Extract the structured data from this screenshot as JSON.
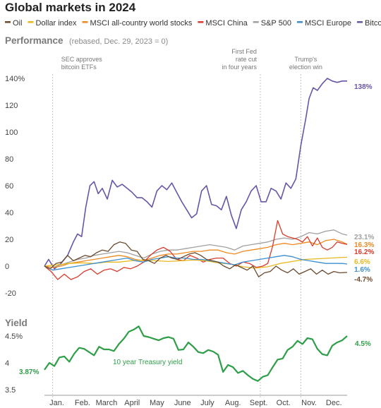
{
  "title": "Global markets in 2024",
  "legend": [
    {
      "name": "Oil",
      "color": "#6b4a2e"
    },
    {
      "name": "Dollar index",
      "color": "#e6b81e"
    },
    {
      "name": "MSCI all-country world stocks",
      "color": "#ee8a22"
    },
    {
      "name": "MSCI China",
      "color": "#d93a2b"
    },
    {
      "name": "S&P 500",
      "color": "#a0a0a0"
    },
    {
      "name": "MSCI Europe",
      "color": "#3d8fcf"
    },
    {
      "name": "Bitcoin",
      "color": "#6955a6"
    }
  ],
  "performance": {
    "heading": "Performance",
    "subheading": "(rebased, Dec. 29, 2023 = 0)"
  },
  "yield_section": {
    "heading": "Yield",
    "series_label": "10 year Treasury yield"
  },
  "annotations": [
    {
      "lines": [
        "SEC approves",
        "bitcoin ETFs"
      ],
      "date": 10
    },
    {
      "lines": [
        "First Fed",
        "rate cut",
        "in four years"
      ],
      "date": 261
    },
    {
      "lines": [
        "Trump's",
        "election win"
      ],
      "date": 310
    }
  ],
  "chart_data": [
    {
      "type": "line",
      "title": "Performance",
      "subtitle": "(rebased, Dec. 29, 2023 = 0)",
      "x_unit": "day of year 2024 (0 = Dec. 29, 2023)",
      "xlim": [
        0,
        366
      ],
      "ylim": [
        -20,
        145
      ],
      "yticks": [
        -20,
        0,
        20,
        40,
        60,
        80,
        100,
        120,
        140
      ],
      "ytick_labels": [
        "-20",
        "0",
        "20",
        "40",
        "60",
        "80",
        "100",
        "120",
        "140%"
      ],
      "xtick_labels": [
        "Jan.",
        "Feb.",
        "March",
        "April",
        "May",
        "June",
        "July",
        "Aug.",
        "Sept.",
        "Oct.",
        "Nov.",
        "Dec."
      ],
      "xtick_positions": [
        15,
        46,
        75,
        106,
        136,
        167,
        197,
        228,
        259,
        289,
        320,
        350
      ],
      "grid": false,
      "legend": "top",
      "series": [
        {
          "name": "Bitcoin",
          "color": "#6955a6",
          "end_label": "138%",
          "x": [
            0,
            5,
            12,
            20,
            28,
            35,
            40,
            45,
            50,
            55,
            60,
            65,
            70,
            76,
            82,
            88,
            94,
            100,
            106,
            112,
            118,
            124,
            130,
            136,
            142,
            148,
            154,
            160,
            166,
            172,
            178,
            184,
            190,
            196,
            202,
            208,
            214,
            220,
            226,
            232,
            238,
            244,
            250,
            256,
            262,
            268,
            274,
            280,
            286,
            292,
            298,
            304,
            310,
            316,
            320,
            325,
            330,
            336,
            342,
            348,
            354,
            360,
            366
          ],
          "y": [
            0,
            5,
            -2,
            2,
            8,
            18,
            24,
            22,
            44,
            60,
            63,
            54,
            58,
            50,
            64,
            59,
            61,
            58,
            55,
            51,
            51,
            48,
            44,
            56,
            60,
            57,
            62,
            55,
            48,
            42,
            36,
            39,
            56,
            60,
            46,
            45,
            42,
            52,
            38,
            28,
            42,
            48,
            56,
            60,
            48,
            48,
            58,
            56,
            50,
            62,
            58,
            65,
            90,
            110,
            125,
            133,
            131,
            136,
            140,
            138,
            137,
            138,
            138
          ]
        },
        {
          "name": "S&P 500",
          "color": "#a0a0a0",
          "end_label": "23.1%",
          "x": [
            0,
            10,
            20,
            30,
            40,
            50,
            60,
            70,
            80,
            90,
            100,
            110,
            120,
            130,
            140,
            150,
            160,
            170,
            180,
            190,
            200,
            210,
            220,
            230,
            240,
            250,
            260,
            270,
            280,
            290,
            300,
            310,
            320,
            330,
            340,
            350,
            360,
            366
          ],
          "y": [
            0,
            -1,
            1,
            3,
            5,
            6,
            8,
            9,
            10,
            11,
            10,
            8,
            6,
            9,
            11,
            12,
            12,
            13,
            14,
            15,
            16,
            15,
            14,
            12,
            15,
            16,
            17,
            18,
            20,
            21,
            20,
            22,
            25,
            24,
            26,
            27,
            24,
            23.1
          ]
        },
        {
          "name": "MSCI all-country world stocks",
          "color": "#ee8a22",
          "end_label": "16.3%",
          "x": [
            0,
            10,
            20,
            30,
            40,
            50,
            60,
            70,
            80,
            90,
            100,
            110,
            120,
            130,
            140,
            150,
            160,
            170,
            180,
            190,
            200,
            210,
            220,
            230,
            240,
            250,
            260,
            270,
            280,
            290,
            300,
            310,
            320,
            330,
            340,
            350,
            360,
            366
          ],
          "y": [
            0,
            -1,
            0,
            2,
            3,
            4,
            5,
            6,
            7,
            8,
            7,
            5,
            4,
            6,
            8,
            9,
            9,
            10,
            11,
            11,
            12,
            12,
            10,
            9,
            11,
            12,
            13,
            14,
            16,
            17,
            16,
            17,
            18,
            16,
            19,
            20,
            18,
            16.3
          ]
        },
        {
          "name": "MSCI China",
          "color": "#d93a2b",
          "end_label": "16.2%",
          "x": [
            0,
            8,
            16,
            24,
            32,
            40,
            48,
            56,
            64,
            72,
            80,
            88,
            96,
            104,
            112,
            120,
            128,
            136,
            144,
            152,
            160,
            168,
            176,
            184,
            192,
            200,
            208,
            216,
            224,
            232,
            240,
            248,
            256,
            264,
            270,
            276,
            282,
            288,
            294,
            300,
            306,
            312,
            318,
            324,
            330,
            336,
            342,
            348,
            354,
            360,
            366
          ],
          "y": [
            0,
            -4,
            -10,
            -6,
            -10,
            -8,
            -4,
            -2,
            -6,
            -3,
            -2,
            -4,
            -1,
            -2,
            0,
            3,
            8,
            12,
            14,
            11,
            5,
            4,
            8,
            6,
            3,
            5,
            6,
            6,
            2,
            0,
            3,
            2,
            -1,
            0,
            2,
            15,
            34,
            24,
            22,
            21,
            20,
            18,
            22,
            15,
            21,
            14,
            12,
            14,
            18,
            17,
            16.2
          ]
        },
        {
          "name": "Dollar index",
          "color": "#e6b81e",
          "end_label": "6.6%",
          "x": [
            0,
            15,
            30,
            45,
            60,
            75,
            90,
            105,
            120,
            135,
            150,
            165,
            180,
            195,
            210,
            225,
            240,
            255,
            270,
            285,
            300,
            315,
            330,
            345,
            360,
            366
          ],
          "y": [
            0,
            1,
            2,
            2.5,
            2,
            3,
            3,
            4,
            4.5,
            4,
            3.5,
            4,
            4.5,
            4,
            2.5,
            1.5,
            -0.5,
            -1.5,
            -0.5,
            2,
            3.5,
            5,
            5.5,
            6,
            6.5,
            6.6
          ]
        },
        {
          "name": "MSCI Europe",
          "color": "#3d8fcf",
          "end_label": "1.6%",
          "x": [
            0,
            10,
            20,
            30,
            40,
            50,
            60,
            70,
            80,
            90,
            100,
            110,
            120,
            130,
            140,
            150,
            160,
            170,
            180,
            190,
            200,
            210,
            220,
            230,
            240,
            250,
            260,
            270,
            280,
            290,
            300,
            310,
            320,
            330,
            340,
            350,
            360,
            366
          ],
          "y": [
            0,
            -3,
            -2,
            -1,
            0,
            1,
            2,
            3,
            4,
            5,
            6,
            4,
            3,
            5,
            6,
            7,
            6,
            6,
            5,
            5,
            4,
            3,
            2,
            1,
            3,
            4,
            5,
            6,
            7,
            8,
            7,
            5,
            4,
            3,
            2,
            2,
            2,
            1.6
          ]
        },
        {
          "name": "Oil",
          "color": "#6b4a2e",
          "end_label": "-4.7%",
          "x": [
            0,
            7,
            14,
            21,
            28,
            35,
            42,
            49,
            56,
            63,
            70,
            77,
            84,
            91,
            98,
            105,
            112,
            119,
            126,
            133,
            140,
            147,
            154,
            161,
            168,
            175,
            182,
            189,
            196,
            203,
            210,
            217,
            224,
            231,
            238,
            245,
            252,
            259,
            266,
            273,
            280,
            287,
            294,
            301,
            308,
            315,
            322,
            329,
            336,
            343,
            350,
            357,
            366
          ],
          "y": [
            0,
            -2,
            2,
            3,
            8,
            4,
            6,
            8,
            7,
            10,
            12,
            11,
            16,
            18,
            17,
            12,
            11,
            5,
            4,
            2,
            6,
            8,
            6,
            5,
            7,
            9,
            10,
            8,
            5,
            4,
            3,
            0,
            -2,
            1,
            -1,
            -3,
            0,
            -8,
            -5,
            -4,
            0,
            -3,
            -5,
            -2,
            -6,
            -4,
            -2,
            -6,
            -3,
            -6,
            -4,
            -5,
            -4.7
          ]
        }
      ]
    },
    {
      "type": "line",
      "title": "Yield",
      "x_unit": "day of year 2024 (0 = Dec. 29, 2023)",
      "xlim": [
        0,
        366
      ],
      "ylim": [
        3.4,
        4.75
      ],
      "yticks": [
        3.5,
        4,
        4.5
      ],
      "ytick_labels": [
        "3.5",
        "4",
        "4.5%"
      ],
      "grid": false,
      "series": [
        {
          "name": "10 year Treasury yield",
          "color": "#2e9e48",
          "start_label": "3.87%",
          "end_label": "4.5%",
          "x": [
            0,
            6,
            12,
            18,
            24,
            30,
            36,
            42,
            48,
            54,
            60,
            66,
            72,
            78,
            84,
            90,
            96,
            102,
            108,
            114,
            120,
            126,
            132,
            138,
            144,
            150,
            156,
            162,
            168,
            174,
            180,
            186,
            192,
            198,
            204,
            210,
            216,
            222,
            228,
            234,
            240,
            246,
            252,
            258,
            264,
            270,
            276,
            282,
            288,
            294,
            300,
            306,
            312,
            318,
            324,
            330,
            336,
            342,
            348,
            354,
            360,
            366
          ],
          "y": [
            3.87,
            4.0,
            3.94,
            4.1,
            4.12,
            4.02,
            4.17,
            4.28,
            4.26,
            4.2,
            4.14,
            4.3,
            4.25,
            4.25,
            4.22,
            4.35,
            4.45,
            4.58,
            4.62,
            4.68,
            4.5,
            4.48,
            4.45,
            4.42,
            4.46,
            4.48,
            4.45,
            4.24,
            4.25,
            4.38,
            4.3,
            4.2,
            4.18,
            4.24,
            4.21,
            4.15,
            3.83,
            3.96,
            3.92,
            3.81,
            3.85,
            3.77,
            3.7,
            3.66,
            3.74,
            3.77,
            3.92,
            4.06,
            4.08,
            4.24,
            4.3,
            4.41,
            4.35,
            4.46,
            4.44,
            4.26,
            4.16,
            4.14,
            4.32,
            4.38,
            4.42,
            4.5
          ]
        }
      ]
    }
  ]
}
